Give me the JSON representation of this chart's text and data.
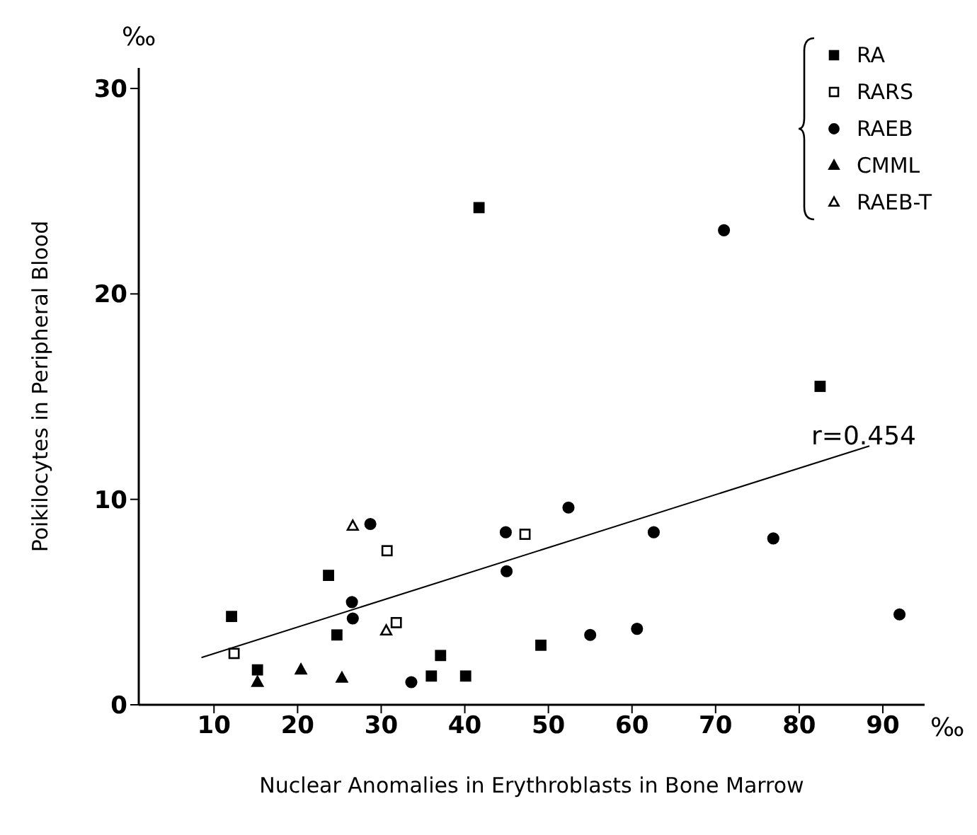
{
  "chart_data": {
    "type": "scatter",
    "xlabel": "Nuclear Anomalies in Erythroblasts in Bone Marrow",
    "ylabel": "Poikilocytes in Peripheral Blood",
    "xlim": [
      1,
      95
    ],
    "xticks": [
      10,
      20,
      30,
      40,
      50,
      60,
      70,
      80,
      90
    ],
    "ylim": [
      0,
      31
    ],
    "yticks": [
      0,
      10,
      20,
      30
    ],
    "grid": false,
    "legend": "top right",
    "annotations": [
      "‰",
      "‰",
      "r=0.454"
    ],
    "series": [
      {
        "name": "RA",
        "marker": "square",
        "color": "#000000",
        "x": [
          12.1,
          23.7,
          24.7,
          15.2,
          36.0,
          37.1,
          40.1,
          49.1,
          41.7,
          82.5
        ],
        "values": [
          4.3,
          6.3,
          3.4,
          1.7,
          1.4,
          2.4,
          1.4,
          2.9,
          24.2,
          15.5
        ]
      },
      {
        "name": "RARS",
        "marker": "square-open",
        "color": "#000000",
        "x": [
          12.4,
          30.7,
          31.8,
          47.2
        ],
        "values": [
          2.5,
          7.5,
          4.0,
          8.3
        ]
      },
      {
        "name": "RAEB",
        "marker": "circle",
        "color": "#000000",
        "x": [
          28.7,
          26.5,
          26.6,
          33.6,
          44.9,
          45.0,
          52.4,
          62.6,
          76.9,
          92.0,
          55.0,
          60.6,
          71.0
        ],
        "values": [
          8.8,
          5.0,
          4.2,
          1.1,
          8.4,
          6.5,
          9.6,
          8.4,
          8.1,
          4.4,
          3.4,
          3.7,
          23.1
        ]
      },
      {
        "name": "CMML",
        "marker": "triangle",
        "color": "#000000",
        "x": [
          15.2,
          20.4,
          25.3
        ],
        "values": [
          1.1,
          1.7,
          1.3
        ]
      },
      {
        "name": "RAEB-T",
        "marker": "triangle-open",
        "color": "#000000",
        "x": [
          26.6,
          30.6
        ],
        "values": [
          8.7,
          3.6
        ]
      },
      {
        "type": "line",
        "color": "#000000",
        "x": [
          8.5,
          88.4
        ],
        "values": [
          2.3,
          12.6
        ]
      }
    ]
  }
}
